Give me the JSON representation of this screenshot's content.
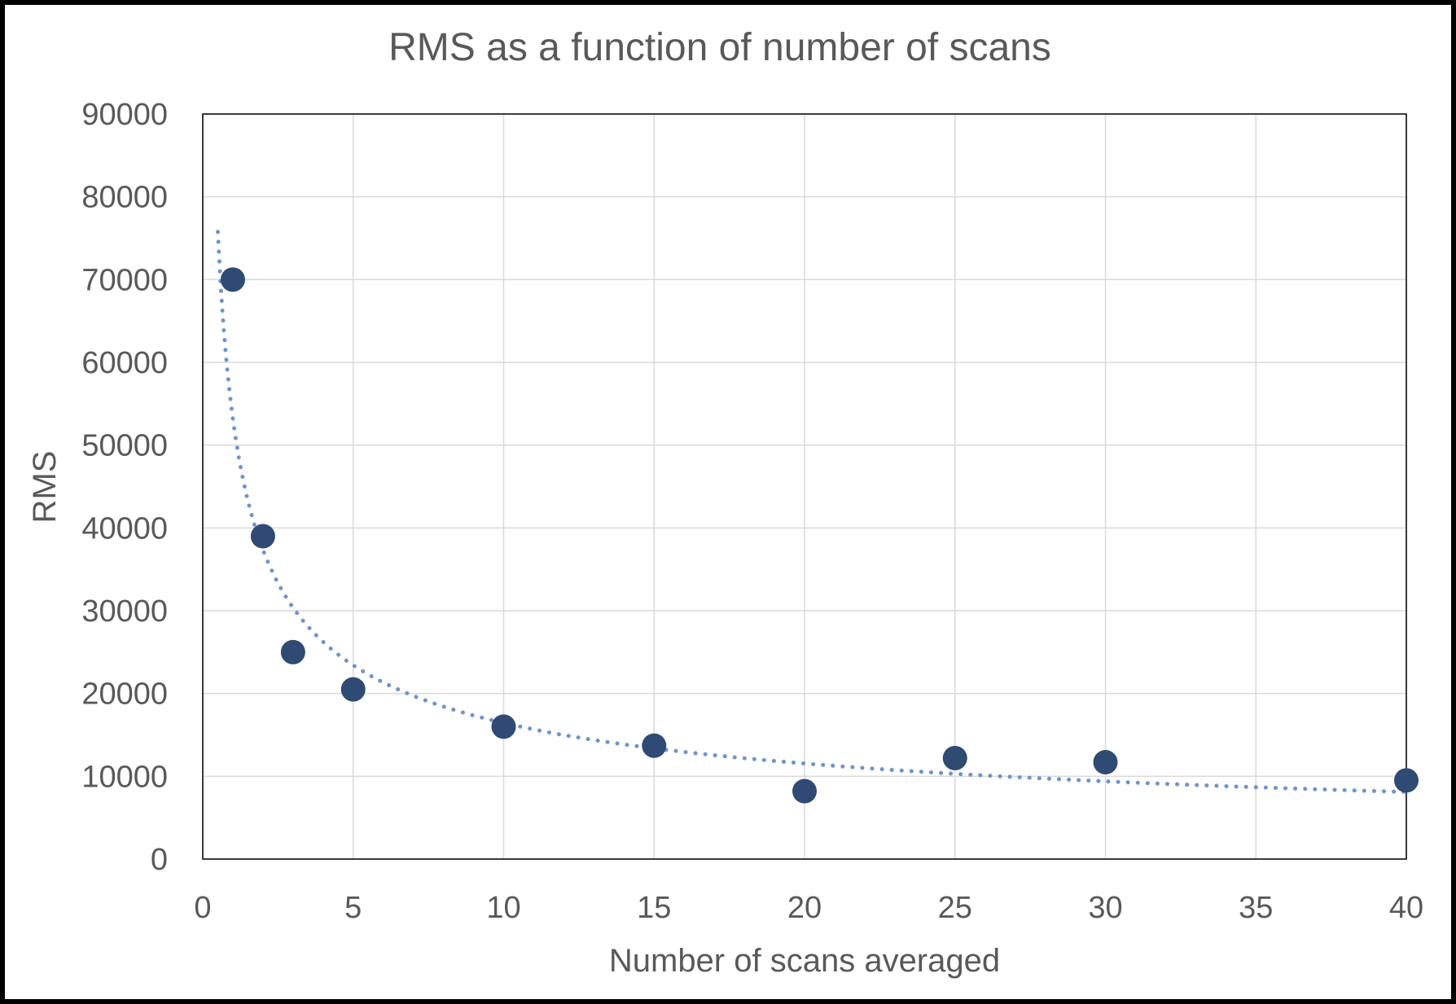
{
  "chart_data": {
    "type": "scatter",
    "title": "RMS as a function of number of scans",
    "xlabel": "Number of scans averaged",
    "ylabel": "RMS",
    "xlim": [
      0,
      40
    ],
    "ylim": [
      0,
      90000
    ],
    "x_ticks": [
      0,
      5,
      10,
      15,
      20,
      25,
      30,
      35,
      40
    ],
    "y_ticks": [
      0,
      10000,
      20000,
      30000,
      40000,
      50000,
      60000,
      70000,
      80000,
      90000
    ],
    "grid": true,
    "legend": "none",
    "series": [
      {
        "points": [
          {
            "x": 1,
            "y": 70000
          },
          {
            "x": 2,
            "y": 39000
          },
          {
            "x": 3,
            "y": 25000
          },
          {
            "x": 5,
            "y": 20500
          },
          {
            "x": 10,
            "y": 16000
          },
          {
            "x": 15,
            "y": 13700
          },
          {
            "x": 20,
            "y": 8200
          },
          {
            "x": 25,
            "y": 12200
          },
          {
            "x": 30,
            "y": 11700
          },
          {
            "x": 40,
            "y": 9500
          }
        ],
        "color": "#2f4a73"
      }
    ],
    "trendline": {
      "kind": "power",
      "style": "dotted",
      "color": "#6f95c8",
      "x_range": [
        0.5,
        40
      ],
      "coefficient": 53200,
      "exponent": -0.51
    }
  }
}
